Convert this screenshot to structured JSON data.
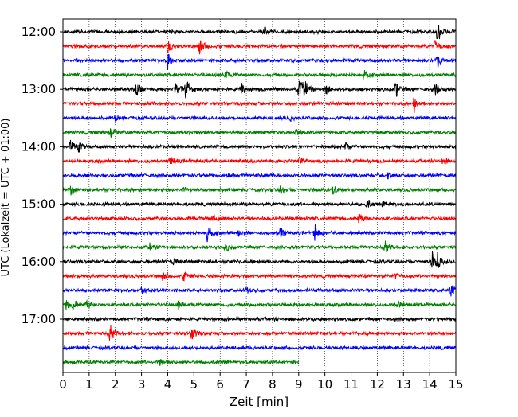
{
  "chart_data": {
    "type": "line",
    "title": "",
    "xlabel": "Zeit  [min]",
    "ylabel": "UTC (Lokalzeit = UTC + 01:00)",
    "xlim": [
      0,
      15
    ],
    "x_ticks": [
      "0",
      "1",
      "2",
      "3",
      "4",
      "5",
      "6",
      "7",
      "8",
      "9",
      "10",
      "11",
      "12",
      "13",
      "14",
      "15"
    ],
    "y_tick_labels": [
      "12:00",
      "13:00",
      "14:00",
      "15:00",
      "16:00",
      "17:00"
    ],
    "row_minutes": 15,
    "x_grid": true,
    "colors": [
      "#000000",
      "#ff0000",
      "#0000ff",
      "#008000"
    ],
    "traces": [
      {
        "start": "12:00",
        "end_min": 15,
        "events": [
          [
            7.7,
            0.8
          ],
          [
            9.6,
            0.3
          ],
          [
            14.3,
            1.6
          ],
          [
            14.9,
            0.5
          ]
        ]
      },
      {
        "start": "12:15",
        "end_min": 15,
        "events": [
          [
            4.0,
            0.9
          ],
          [
            5.2,
            1.3
          ],
          [
            14.2,
            0.9
          ]
        ]
      },
      {
        "start": "12:30",
        "end_min": 15,
        "events": [
          [
            4.0,
            1.2
          ],
          [
            14.3,
            1.0
          ]
        ]
      },
      {
        "start": "12:45",
        "end_min": 15,
        "events": [
          [
            6.2,
            0.6
          ],
          [
            11.5,
            0.6
          ]
        ]
      },
      {
        "start": "13:00",
        "end_min": 15,
        "events": [
          [
            2.8,
            1.1
          ],
          [
            4.3,
            1.0
          ],
          [
            4.7,
            1.4
          ],
          [
            6.8,
            0.9
          ],
          [
            9.0,
            1.6
          ],
          [
            9.2,
            1.3
          ],
          [
            10.0,
            0.9
          ],
          [
            12.7,
            1.2
          ],
          [
            14.2,
            1.0
          ]
        ]
      },
      {
        "start": "13:15",
        "end_min": 15,
        "events": [
          [
            13.4,
            1.1
          ]
        ]
      },
      {
        "start": "13:30",
        "end_min": 15,
        "events": [
          [
            2.0,
            0.4
          ],
          [
            8.7,
            0.3
          ]
        ]
      },
      {
        "start": "13:45",
        "end_min": 15,
        "events": [
          [
            1.8,
            0.7
          ],
          [
            4.7,
            0.6
          ],
          [
            8.9,
            0.5
          ]
        ]
      },
      {
        "start": "14:00",
        "end_min": 15,
        "events": [
          [
            0.3,
            1.1
          ],
          [
            0.6,
            0.6
          ],
          [
            10.8,
            0.6
          ]
        ]
      },
      {
        "start": "14:15",
        "end_min": 15,
        "events": [
          [
            4.1,
            0.7
          ],
          [
            9.0,
            0.5
          ],
          [
            14.5,
            0.5
          ]
        ]
      },
      {
        "start": "14:30",
        "end_min": 15,
        "events": [
          [
            6.3,
            0.3
          ],
          [
            12.4,
            0.4
          ]
        ]
      },
      {
        "start": "14:45",
        "end_min": 15,
        "events": [
          [
            0.3,
            0.8
          ],
          [
            4.6,
            0.5
          ],
          [
            8.3,
            0.6
          ],
          [
            10.3,
            0.6
          ]
        ]
      },
      {
        "start": "15:00",
        "end_min": 15,
        "events": [
          [
            11.6,
            0.8
          ],
          [
            12.2,
            0.3
          ]
        ]
      },
      {
        "start": "15:15",
        "end_min": 15,
        "events": [
          [
            5.7,
            0.6
          ],
          [
            11.3,
            0.7
          ]
        ]
      },
      {
        "start": "15:30",
        "end_min": 15,
        "events": [
          [
            5.5,
            1.1
          ],
          [
            6.7,
            0.5
          ],
          [
            8.3,
            0.8
          ],
          [
            9.6,
            1.4
          ]
        ]
      },
      {
        "start": "15:45",
        "end_min": 15,
        "events": [
          [
            3.3,
            0.6
          ],
          [
            6.2,
            0.7
          ],
          [
            12.3,
            0.8
          ]
        ]
      },
      {
        "start": "16:00",
        "end_min": 15,
        "events": [
          [
            4.2,
            0.4
          ],
          [
            14.1,
            1.3
          ],
          [
            14.3,
            0.9
          ]
        ]
      },
      {
        "start": "16:15",
        "end_min": 15,
        "events": [
          [
            3.8,
            0.6
          ],
          [
            4.6,
            0.8
          ],
          [
            12.7,
            0.4
          ]
        ]
      },
      {
        "start": "16:30",
        "end_min": 15,
        "events": [
          [
            3.0,
            0.5
          ],
          [
            7.0,
            0.4
          ],
          [
            14.8,
            0.9
          ]
        ]
      },
      {
        "start": "16:45",
        "end_min": 15,
        "events": [
          [
            0.1,
            0.9
          ],
          [
            0.4,
            0.9
          ],
          [
            0.9,
            0.6
          ],
          [
            4.4,
            0.5
          ],
          [
            12.8,
            0.4
          ]
        ]
      },
      {
        "start": "17:00",
        "end_min": 15,
        "events": []
      },
      {
        "start": "17:15",
        "end_min": 15,
        "events": [
          [
            1.8,
            1.3
          ],
          [
            4.9,
            1.0
          ]
        ]
      },
      {
        "start": "17:30",
        "end_min": 15,
        "events": []
      },
      {
        "start": "17:45",
        "end_min": 9,
        "events": [
          [
            3.7,
            0.5
          ]
        ]
      }
    ]
  }
}
